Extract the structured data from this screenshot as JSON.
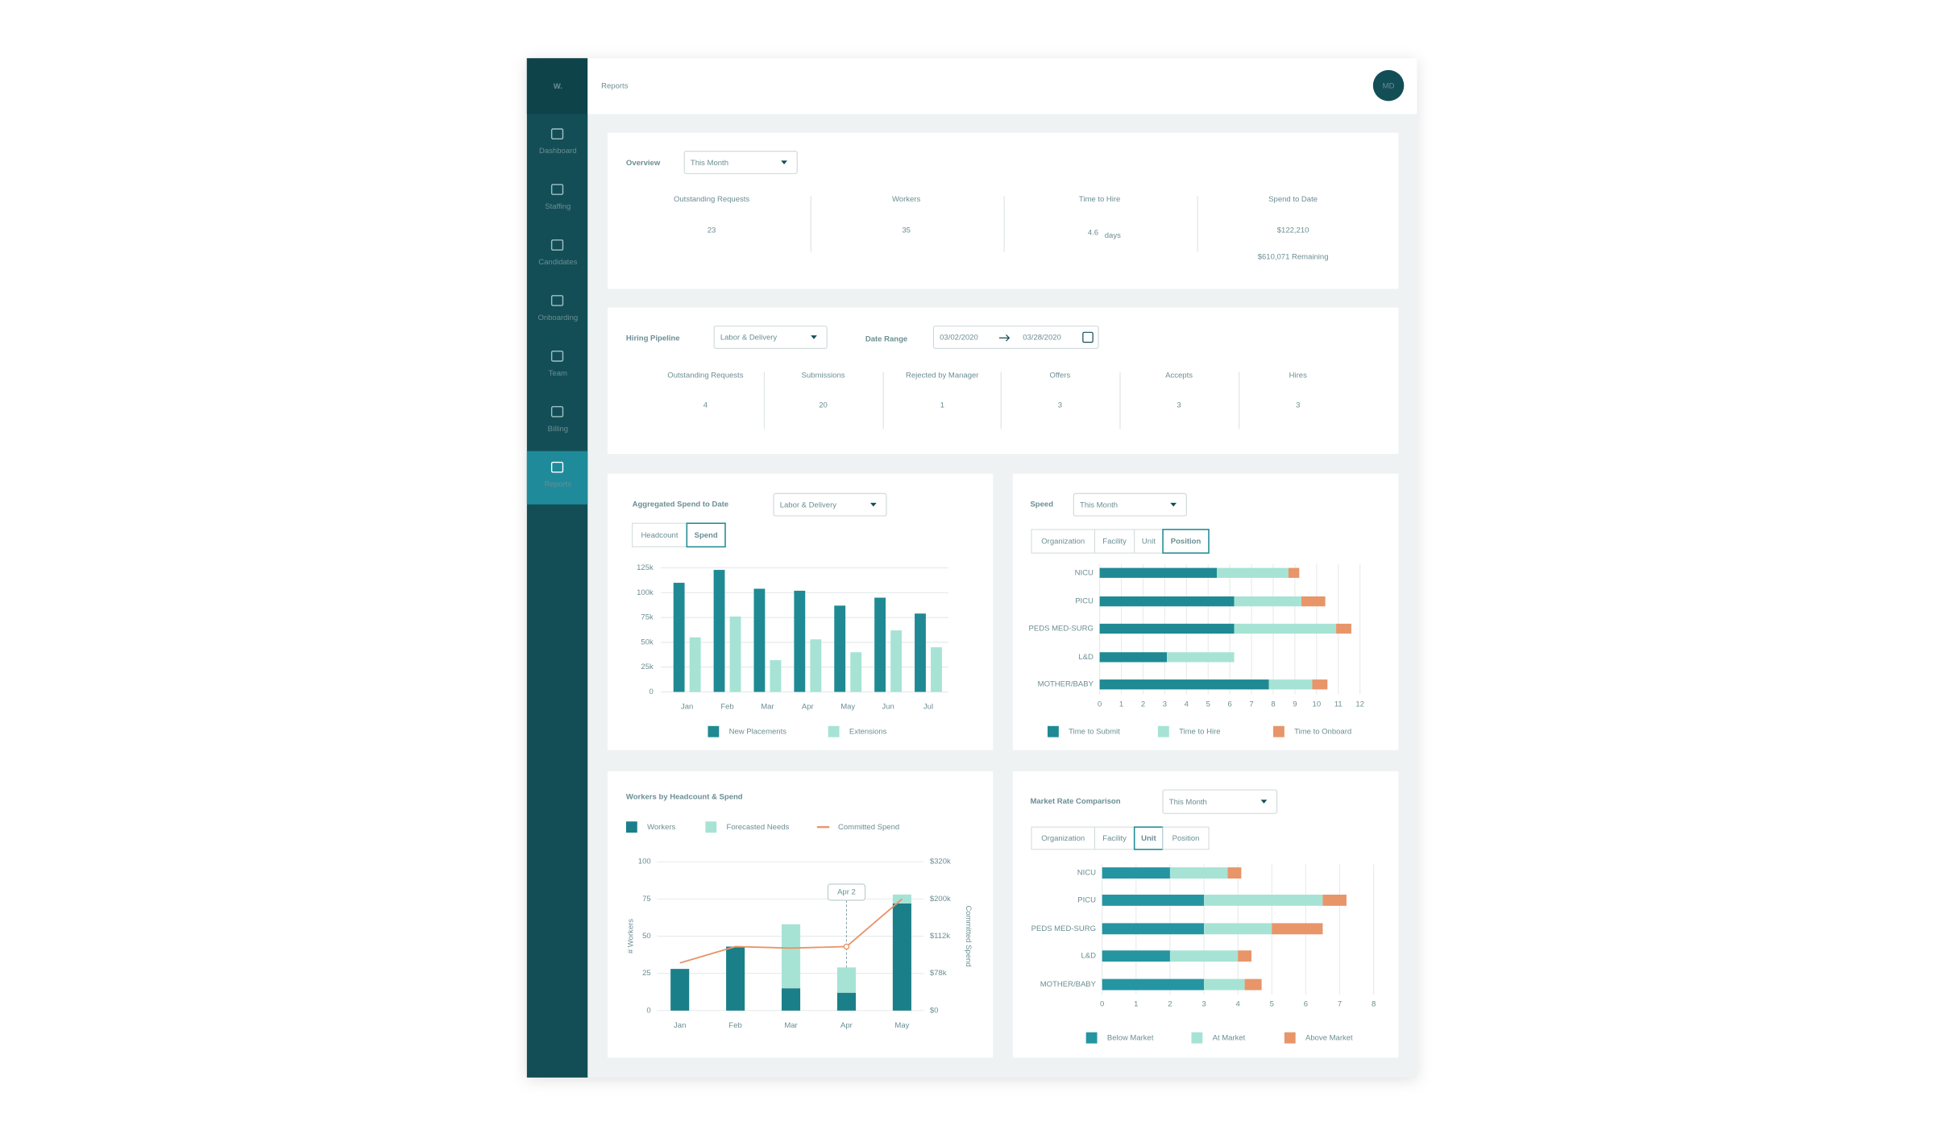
{
  "sidebar": {
    "logo": "W.",
    "items": [
      {
        "label": "Dashboard"
      },
      {
        "label": "Staffing"
      },
      {
        "label": "Candidates"
      },
      {
        "label": "Onboarding"
      },
      {
        "label": "Team"
      },
      {
        "label": "Billing"
      },
      {
        "label": "Reports",
        "active": true
      }
    ]
  },
  "header": {
    "title": "Reports",
    "avatar": "MD"
  },
  "overview": {
    "title": "Overview",
    "filter": "This Month",
    "metrics": [
      {
        "label": "Outstanding Requests",
        "value": "23"
      },
      {
        "label": "Workers",
        "value": "35"
      },
      {
        "label": "Time to Hire",
        "value": "4.6",
        "unit": "days"
      },
      {
        "label": "Spend to Date",
        "value": "$122,210",
        "note": "$610,071 Remaining"
      }
    ]
  },
  "pipeline": {
    "title": "Hiring Pipeline",
    "filter": "Labor & Delivery",
    "date_range_label": "Date Range",
    "date_from": "03/02/2020",
    "date_to": "03/28/2020",
    "metrics": [
      {
        "label": "Outstanding Requests",
        "value": "4"
      },
      {
        "label": "Submissions",
        "value": "20"
      },
      {
        "label": "Rejected by Manager",
        "value": "1"
      },
      {
        "label": "Offers",
        "value": "3"
      },
      {
        "label": "Accepts",
        "value": "3"
      },
      {
        "label": "Hires",
        "value": "3"
      }
    ]
  },
  "chart_data": [
    {
      "type": "bar",
      "title": "Aggregated Spend to Date",
      "filter": "Labor & Delivery",
      "tabs": [
        "Headcount",
        "Spend"
      ],
      "active_tab": 1,
      "categories": [
        "Jan",
        "Feb",
        "Mar",
        "Apr",
        "May",
        "Jun",
        "Jul"
      ],
      "series": [
        {
          "name": "New Placements",
          "color": "#1f8a93",
          "values": [
            110000,
            123000,
            104000,
            102000,
            87000,
            95000,
            79000
          ]
        },
        {
          "name": "Extensions",
          "color": "#a6e3d5",
          "values": [
            55000,
            76000,
            32000,
            53000,
            40000,
            62000,
            45000
          ]
        }
      ],
      "ylim": [
        0,
        125000
      ],
      "yticks": [
        0,
        {
          "value": 25000,
          "label": "25k"
        },
        {
          "value": 50000,
          "label": "50k"
        },
        {
          "value": 75000,
          "label": "75k"
        },
        {
          "value": 100000,
          "label": "100k"
        },
        {
          "value": 125000,
          "label": "125k"
        }
      ],
      "grid": true,
      "legend": "bottom"
    },
    {
      "type": "hbar-stacked",
      "title": "Speed",
      "filter": "This Month",
      "tabs": [
        "Organization",
        "Facility",
        "Unit",
        "Position"
      ],
      "active_tab": 3,
      "categories": [
        "NICU",
        "PICU",
        "PEDS MED-SURG",
        "L&D",
        "MOTHER/BABY"
      ],
      "series": [
        {
          "name": "Time to Submit",
          "color": "#1f8a93",
          "values": [
            5.4,
            6.2,
            6.2,
            3.1,
            7.8
          ]
        },
        {
          "name": "Time to Hire",
          "color": "#a6e3d5",
          "values": [
            3.3,
            3.1,
            4.7,
            3.1,
            2.0
          ]
        },
        {
          "name": "Time to Onboard",
          "color": "#e8956a",
          "values": [
            0.5,
            1.1,
            0.7,
            0,
            0.7
          ]
        }
      ],
      "xlim": [
        0,
        12
      ],
      "xticks": [
        0,
        1,
        2,
        3,
        4,
        5,
        6,
        7,
        8,
        9,
        10,
        11,
        12
      ],
      "grid": true,
      "legend": "bottom"
    },
    {
      "type": "combo",
      "title": "Workers by Headcount & Spend",
      "categories": [
        "Jan",
        "Feb",
        "Mar",
        "Apr",
        "May"
      ],
      "series": [
        {
          "name": "Workers",
          "kind": "bar",
          "color": "#1a7f88",
          "values": [
            28,
            43,
            15,
            12,
            72
          ]
        },
        {
          "name": "Forecasted Needs",
          "kind": "bar",
          "color": "#a6e3d5",
          "values": [
            0,
            0,
            43,
            17,
            6
          ]
        },
        {
          "name": "Committed Spend",
          "kind": "line",
          "color": "#e8956a",
          "values": [
            32,
            43,
            42,
            43,
            75
          ]
        }
      ],
      "ylim": [
        0,
        100
      ],
      "yticks": [
        0,
        25,
        50,
        75,
        100
      ],
      "y2_labels": [
        "$0",
        "$78k",
        "$112k",
        "$200k",
        "$320k"
      ],
      "ylabel": "# Workers",
      "y2label": "Committed Spend",
      "annotation": "Apr 2",
      "annotation_category": 3,
      "legend": "top"
    },
    {
      "type": "hbar-stacked",
      "title": "Market Rate  Comparison",
      "filter": "This Month",
      "tabs": [
        "Organization",
        "Facility",
        "Unit",
        "Position"
      ],
      "active_tab": 2,
      "categories": [
        "NICU",
        "PICU",
        "PEDS MED-SURG",
        "L&D",
        "MOTHER/BABY"
      ],
      "series": [
        {
          "name": "Below Market",
          "color": "#2695a2",
          "values": [
            2.0,
            3.0,
            3.0,
            2.0,
            3.0
          ]
        },
        {
          "name": "At Market",
          "color": "#a6e3d5",
          "values": [
            1.7,
            3.5,
            2.0,
            2.0,
            1.2
          ]
        },
        {
          "name": "Above Market",
          "color": "#e8956a",
          "values": [
            0.4,
            0.7,
            1.5,
            0.4,
            0.5
          ]
        }
      ],
      "xlim": [
        0,
        8
      ],
      "xticks": [
        0,
        1,
        2,
        3,
        4,
        5,
        6,
        7,
        8
      ],
      "grid": true,
      "legend": "bottom"
    }
  ]
}
